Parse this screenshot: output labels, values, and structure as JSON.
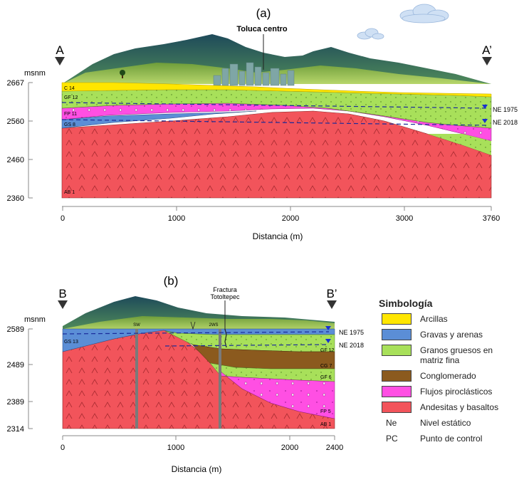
{
  "panel_a": {
    "label": "(a)",
    "start_marker": "A",
    "end_marker": "A’",
    "city_label": "Toluca centro",
    "unit_label": "msnm",
    "x_axis_title": "Distancia (m)",
    "y_ticks": [
      "2667",
      "2560",
      "2460",
      "2360"
    ],
    "x_ticks": [
      "0",
      "1000",
      "2000",
      "3000",
      "3760"
    ],
    "water_levels": [
      "NE 1975",
      "NE 2018"
    ],
    "unit_labels": [
      "C 14",
      "GF 12",
      "FP 11",
      "GS 8",
      "AB 1"
    ]
  },
  "panel_b": {
    "label": "(b)",
    "start_marker": "B",
    "end_marker": "B’",
    "fracture_label_1": "Fractura",
    "fracture_label_2": "Totoltepec",
    "unit_label": "msnm",
    "x_axis_title": "Distancia (m)",
    "y_ticks": [
      "2589",
      "2489",
      "2389",
      "2314"
    ],
    "x_ticks": [
      "0",
      "1000",
      "2000",
      "2400"
    ],
    "water_levels": [
      "NE 1975",
      "NE 2018"
    ],
    "unit_labels": [
      "GS 13",
      "GF 12",
      "CG 7",
      "GF 6",
      "FP 5",
      "AB 1"
    ],
    "well_labels": [
      "SW",
      "2WS"
    ]
  },
  "legend": {
    "title": "Simbología",
    "items": [
      {
        "label": "Arcillas",
        "color": "#ffe600"
      },
      {
        "label": "Gravas y arenas",
        "color": "#5b8ed6"
      },
      {
        "label": "Granos gruesos en",
        "label2": "matriz fina",
        "color": "#a8e05a"
      },
      {
        "label": "Conglomerado",
        "color": "#8b5a1e"
      },
      {
        "label": "Flujos piroclásticos",
        "color": "#ff4fe3"
      },
      {
        "label": "Andesitas y basaltos",
        "color": "#f2545b"
      }
    ],
    "abbreviations": [
      {
        "abbr": "Ne",
        "meaning": "Nivel estático"
      },
      {
        "abbr": "PC",
        "meaning": "Punto de control"
      }
    ]
  }
}
